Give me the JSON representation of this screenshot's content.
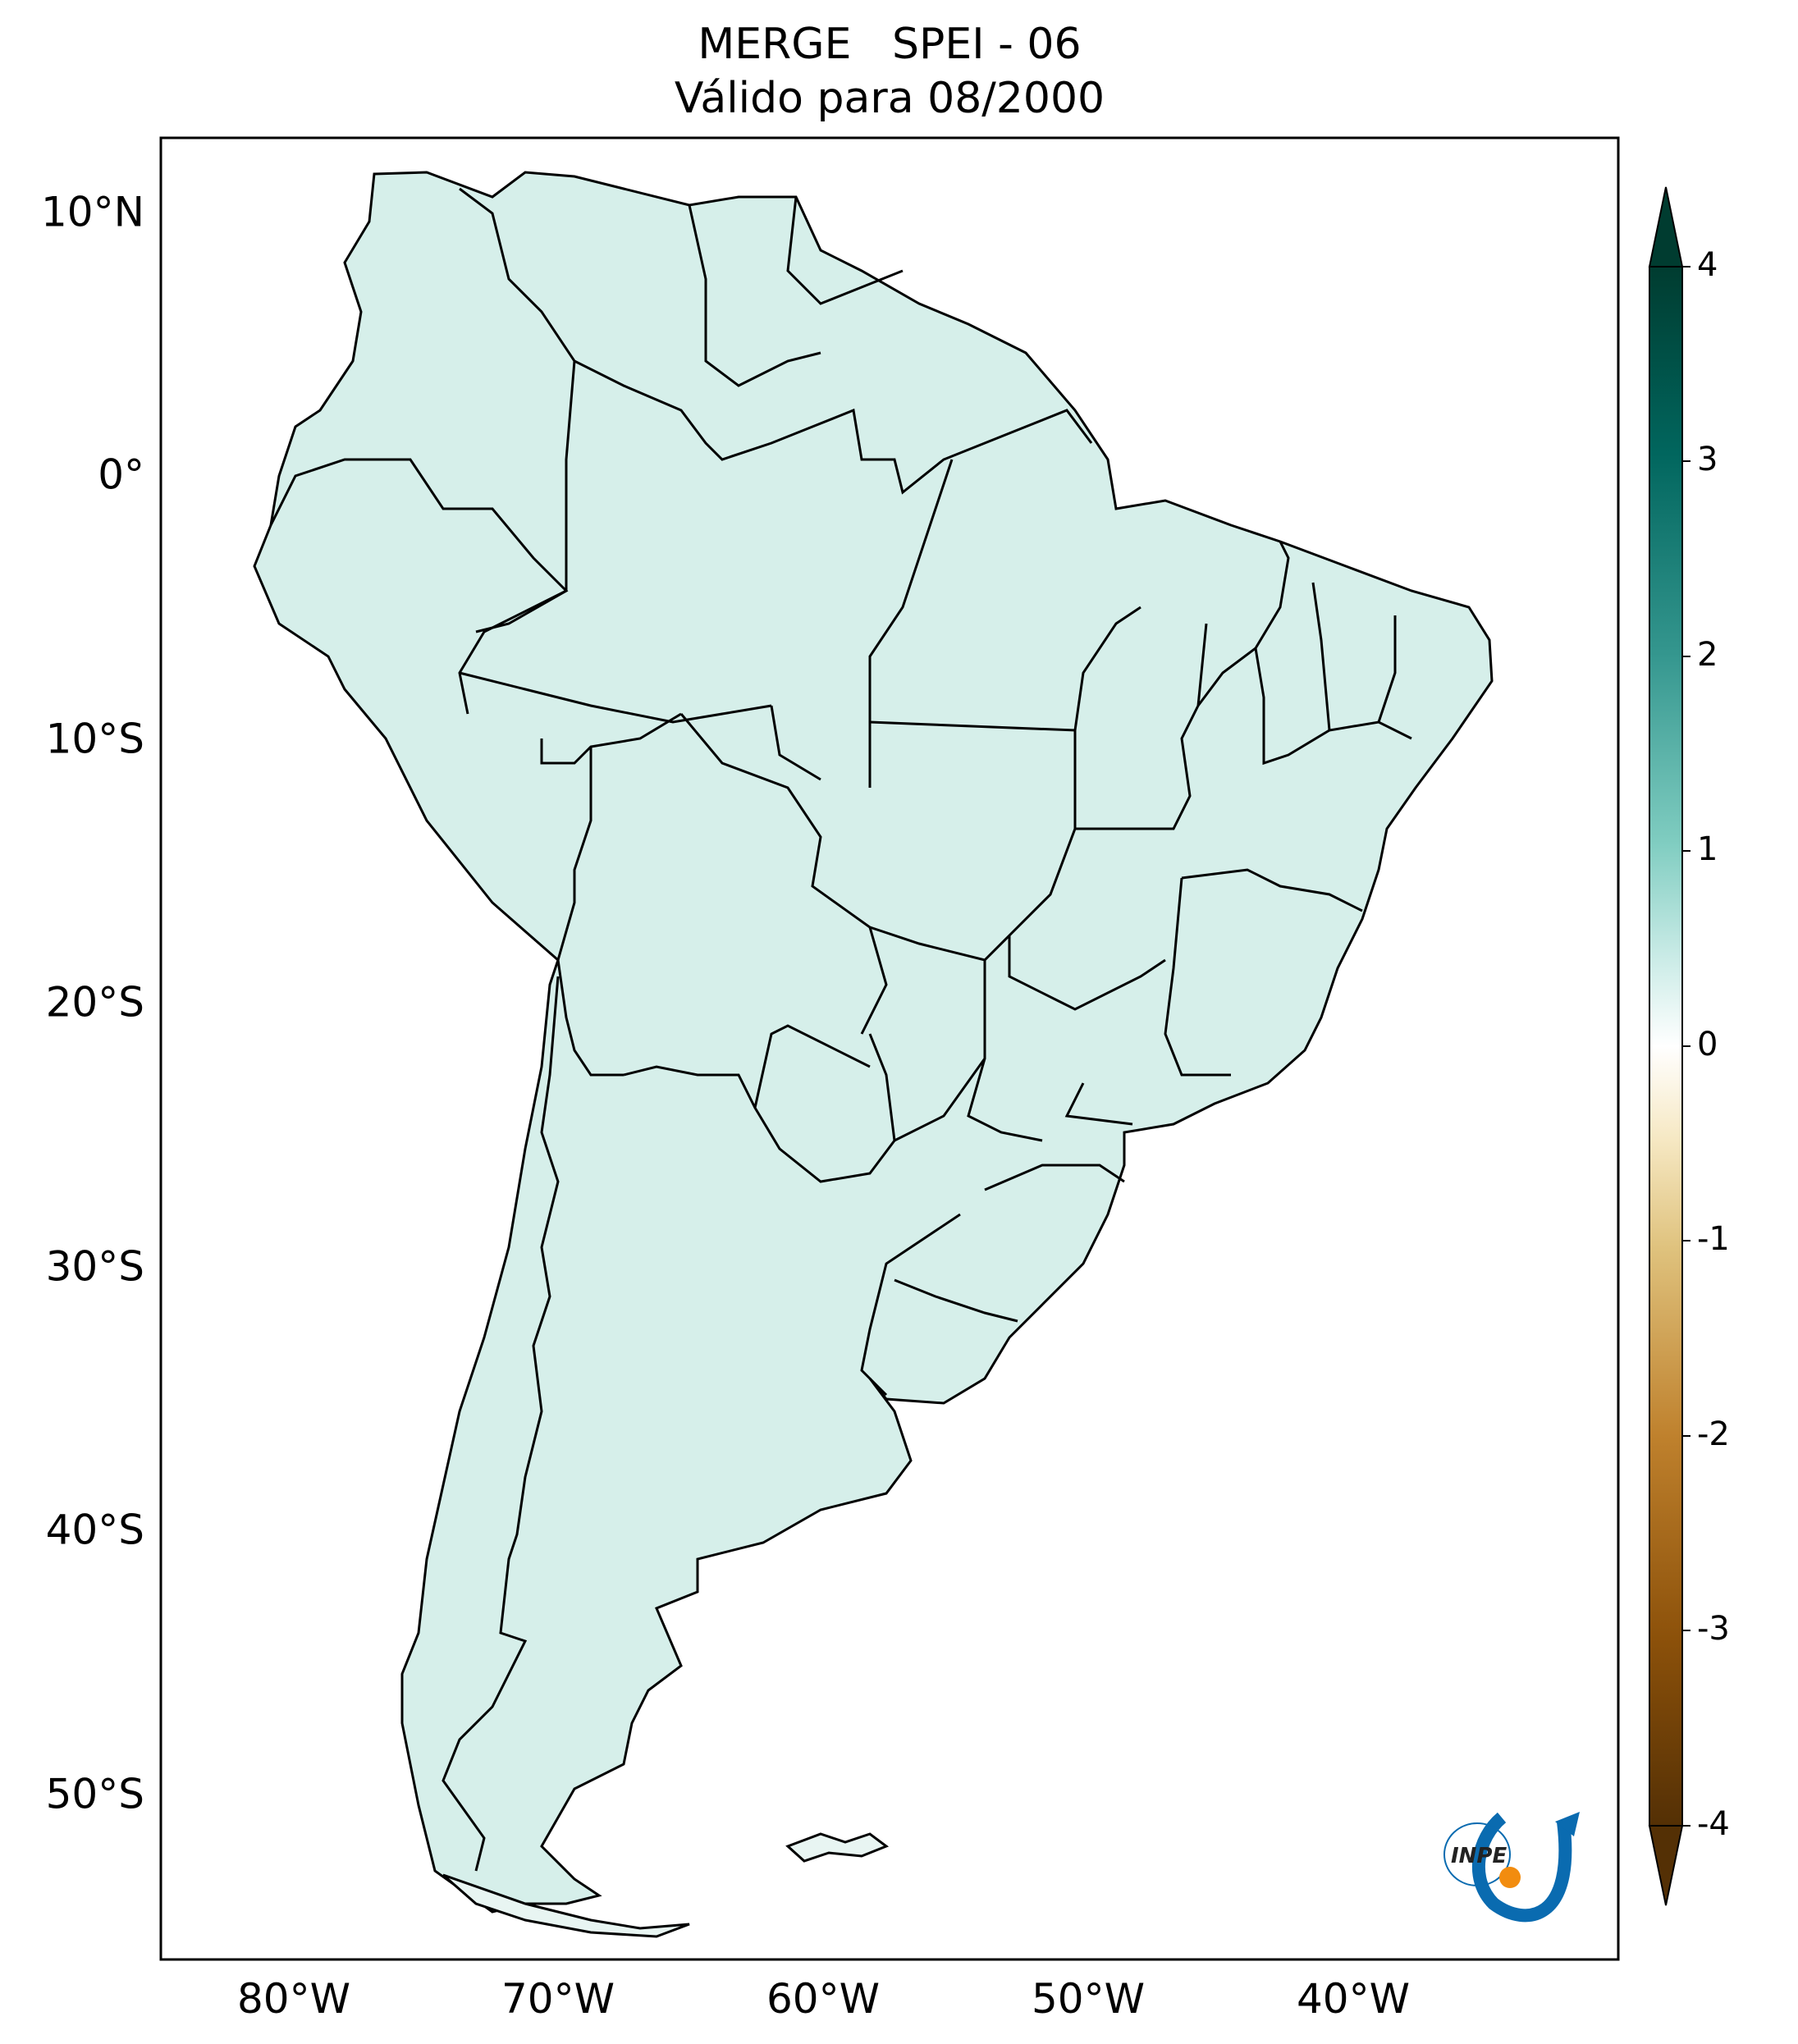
{
  "title": {
    "line1": "MERGE   SPEI - 06",
    "line2": "Válido para 08/2000"
  },
  "map": {
    "lat_ticks": [
      "10°N",
      "0°",
      "10°S",
      "20°S",
      "30°S",
      "40°S",
      "50°S"
    ],
    "lon_ticks": [
      "80°W",
      "70°W",
      "60°W",
      "50°W",
      "40°W"
    ],
    "extent": {
      "lon": [
        -85,
        -30
      ],
      "lat": [
        -56,
        13
      ]
    }
  },
  "colorbar": {
    "ticks": [
      "4",
      "3",
      "2",
      "1",
      "0",
      "-1",
      "-2",
      "-3",
      "-4"
    ],
    "range": [
      -4,
      4
    ],
    "colormap": "BrBG",
    "extend": "both",
    "colors": [
      "#543005",
      "#8c510a",
      "#bf812d",
      "#dfc27d",
      "#f6e8c3",
      "#f5f5f5",
      "#c7eae5",
      "#80cdc1",
      "#35978f",
      "#01665e",
      "#003c30"
    ]
  },
  "logo": {
    "text": "INPE"
  }
}
